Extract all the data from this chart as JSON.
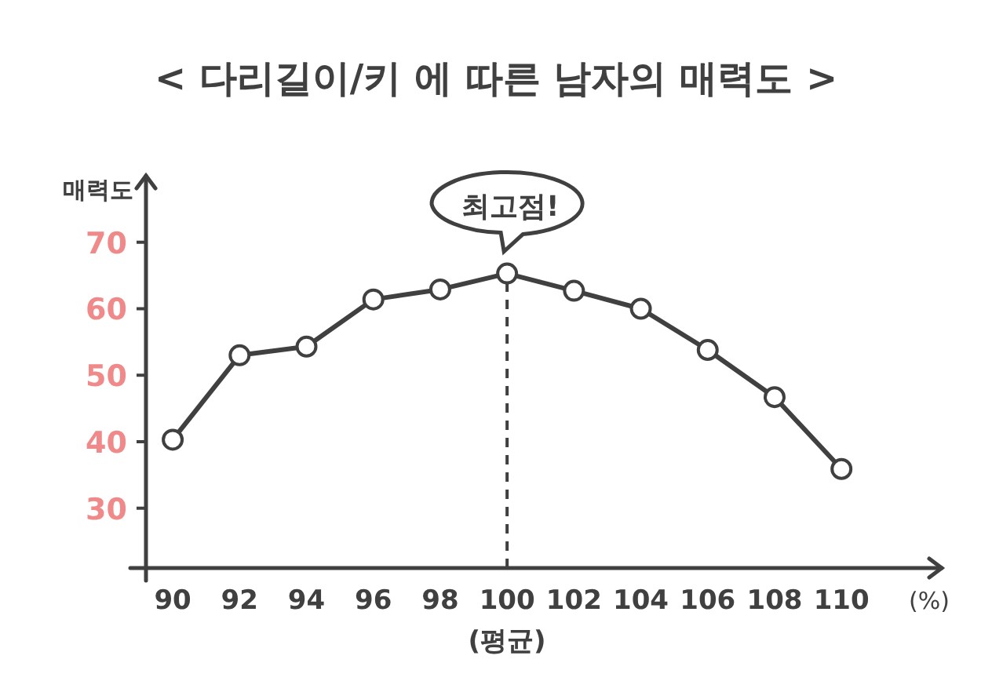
{
  "chart_data": {
    "type": "line",
    "title": "< 다리길이/키 에 따른 남자의 매력도 >",
    "ylabel": "매력도",
    "xlabel": "(%)",
    "x": [
      90,
      92,
      94,
      96,
      98,
      100,
      102,
      104,
      106,
      108,
      110
    ],
    "series": [
      {
        "color": "#404040",
        "values": [
          40.3,
          53,
          54.3,
          61.4,
          62.9,
          65.3,
          62.7,
          60,
          53.8,
          46.7,
          35.9
        ]
      }
    ],
    "xlim": [
      89.2,
      113
    ],
    "xticks": [
      90,
      92,
      94,
      96,
      98,
      100,
      102,
      104,
      106,
      108,
      110
    ],
    "ylim": [
      21,
      80
    ],
    "yticks": [
      30,
      40,
      50,
      60,
      70
    ],
    "ref_lines": [
      {
        "axis": "x",
        "value": 100,
        "line_style": "dashed",
        "color": "#404040"
      }
    ],
    "annotations": [
      {
        "text": "최고점!",
        "x": 100,
        "y": 65.3
      },
      "(평균)"
    ],
    "marker": "circle",
    "line_style": "solid",
    "grid": false
  }
}
